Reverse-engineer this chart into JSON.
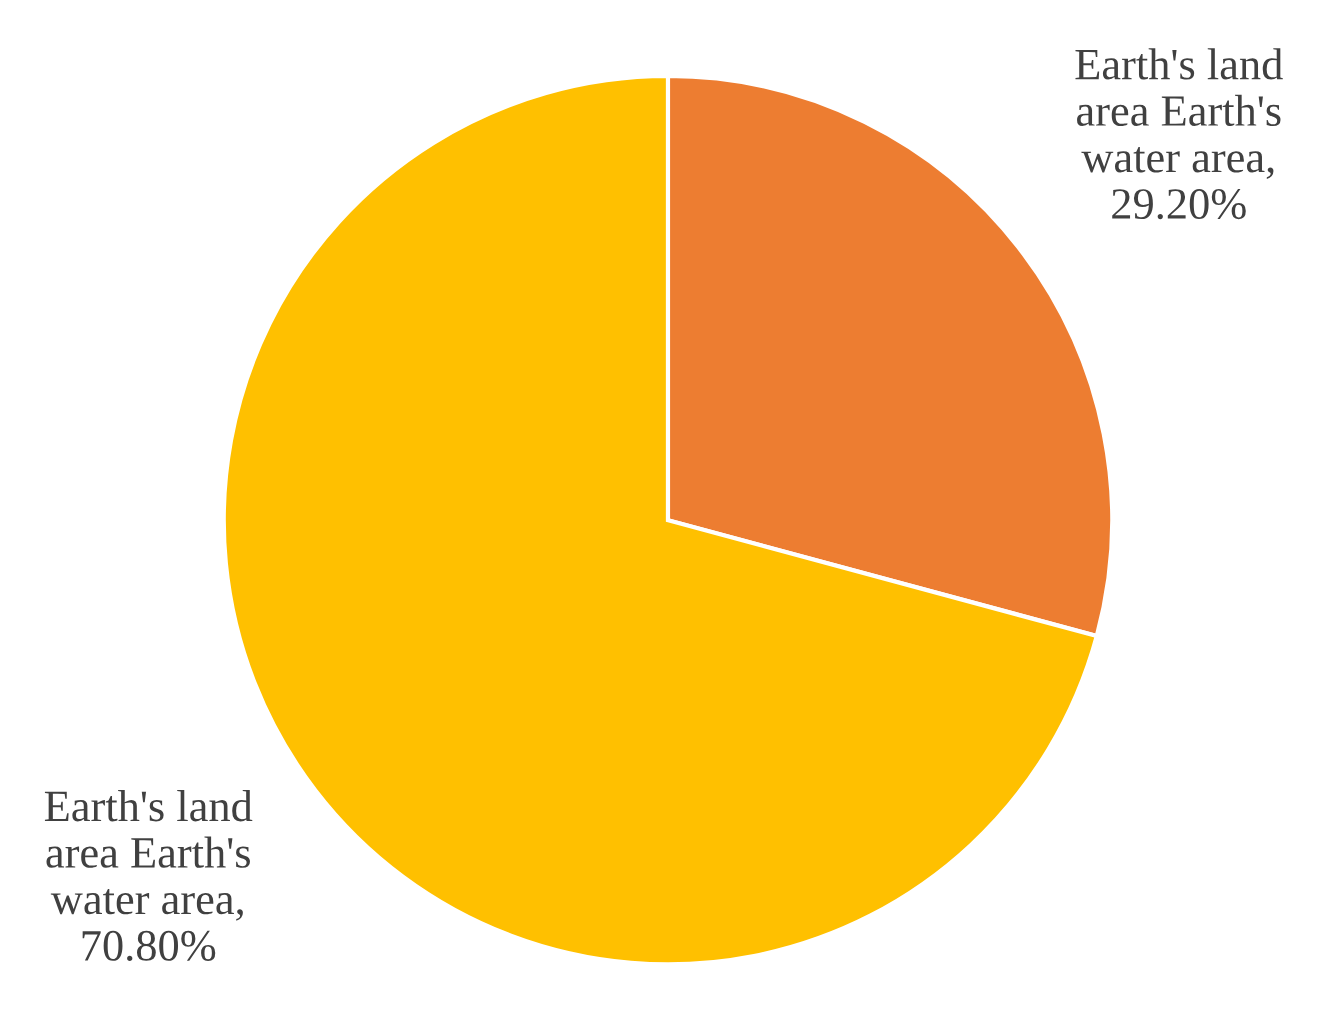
{
  "chart_data": {
    "type": "pie",
    "categories": [
      "Earth's land\narea Earth's\nwater area",
      "Earth's land\narea Earth's\nwater area"
    ],
    "values": [
      29.2,
      70.8
    ],
    "value_labels": [
      ",\n29.20%",
      ",\n70.80%"
    ],
    "colors": [
      "#ed7d31",
      "#ffc000"
    ],
    "legend": false
  }
}
